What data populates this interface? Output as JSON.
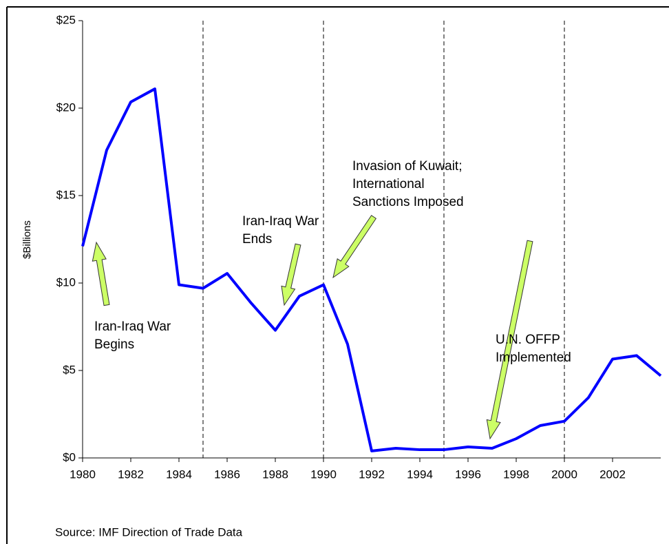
{
  "chart_data": {
    "type": "line",
    "y_label": "$Billions",
    "source": "Source:   IMF Direction of Trade Data",
    "x": [
      1980,
      1981,
      1982,
      1983,
      1984,
      1985,
      1986,
      1987,
      1988,
      1989,
      1990,
      1991,
      1992,
      1993,
      1994,
      1995,
      1996,
      1997,
      1998,
      1999,
      2000,
      2001,
      2002,
      2003,
      2004
    ],
    "series": [
      {
        "color": "#0000ff",
        "values": [
          12.1,
          17.6,
          20.35,
          21.1,
          9.9,
          9.7,
          10.55,
          8.85,
          7.3,
          9.25,
          9.9,
          6.5,
          0.4,
          0.55,
          0.47,
          0.47,
          0.63,
          0.55,
          1.1,
          1.85,
          2.1,
          3.45,
          5.65,
          5.85,
          4.7
        ]
      }
    ],
    "xlim": [
      1980,
      2004
    ],
    "xticks": [
      1980,
      1982,
      1984,
      1986,
      1988,
      1990,
      1992,
      1994,
      1996,
      1998,
      2000,
      2002
    ],
    "ylim": [
      0,
      25
    ],
    "yticks": [
      {
        "value": 0,
        "label": "$0"
      },
      {
        "value": 5,
        "label": "$5"
      },
      {
        "value": 10,
        "label": "$10"
      },
      {
        "value": 15,
        "label": "$15"
      },
      {
        "value": 20,
        "label": "$20"
      },
      {
        "value": 25,
        "label": "$25"
      }
    ],
    "vlines": [
      1985,
      1990,
      1995,
      2000
    ],
    "annotations": [
      {
        "lines": [
          "Iran-Iraq War",
          "Begins"
        ]
      },
      {
        "lines": [
          "Iran-Iraq War",
          "Ends"
        ]
      },
      {
        "lines": [
          "Invasion of Kuwait;",
          "International",
          "Sanctions Imposed"
        ]
      },
      {
        "lines": [
          "U.N. OFFP",
          "Implemented"
        ]
      }
    ]
  }
}
